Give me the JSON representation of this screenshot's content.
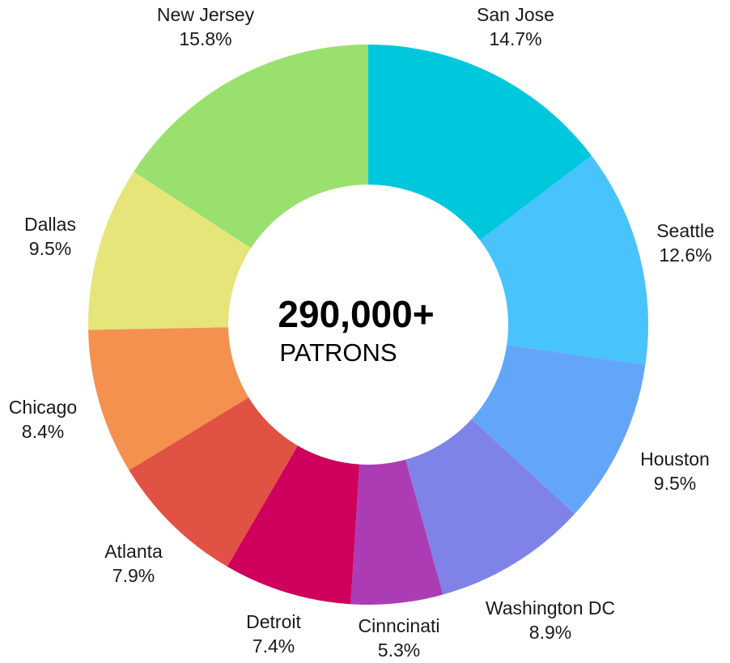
{
  "chart_data": {
    "type": "pie",
    "variant": "donut",
    "center": {
      "total": "290,000+",
      "unit": "PATRONS"
    },
    "slices": [
      {
        "name": "San Jose",
        "value": 14.7,
        "label": "14.7%",
        "color": "#00c8dc"
      },
      {
        "name": "Seattle",
        "value": 12.6,
        "label": "12.6%",
        "color": "#48c3fc"
      },
      {
        "name": "Houston",
        "value": 9.5,
        "label": "9.5%",
        "color": "#63a6f9"
      },
      {
        "name": "Washington DC",
        "value": 8.9,
        "label": "8.9%",
        "color": "#7f83e8"
      },
      {
        "name": "Cinncinati",
        "value": 5.3,
        "label": "5.3%",
        "color": "#ac3cb4"
      },
      {
        "name": "Detroit",
        "value": 7.4,
        "label": "7.4%",
        "color": "#cf005b"
      },
      {
        "name": "Atlanta",
        "value": 7.9,
        "label": "7.9%",
        "color": "#df5244"
      },
      {
        "name": "Chicago",
        "value": 8.4,
        "label": "8.4%",
        "color": "#f4914e"
      },
      {
        "name": "Dallas",
        "value": 9.5,
        "label": "9.5%",
        "color": "#e5e57a"
      },
      {
        "name": "New Jersey",
        "value": 15.8,
        "label": "15.8%",
        "color": "#9ae06e"
      }
    ]
  }
}
